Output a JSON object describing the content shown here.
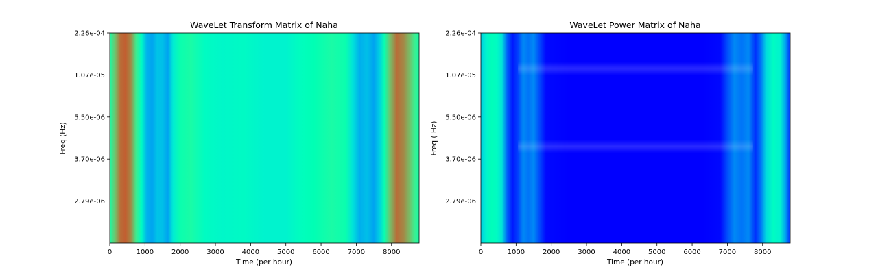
{
  "chart_data": [
    {
      "type": "heatmap",
      "title": "WaveLet Transform Matrix of Naha",
      "xlabel": "Time (per hour)",
      "ylabel": "Freq (Hz)",
      "xlim": [
        0,
        8784
      ],
      "xticks": [
        0,
        1000,
        2000,
        3000,
        4000,
        5000,
        6000,
        7000,
        8000
      ],
      "yticklabels": [
        "2.26e-04",
        "1.07e-05",
        "5.50e-06",
        "3.70e-06",
        "2.79e-06"
      ],
      "colormap": "rainbow",
      "column_profile": [
        {
          "t": 0,
          "v": 0.55
        },
        {
          "t": 150,
          "v": 0.72
        },
        {
          "t": 300,
          "v": 0.86
        },
        {
          "t": 450,
          "v": 0.88
        },
        {
          "t": 600,
          "v": 0.82
        },
        {
          "t": 750,
          "v": 0.62
        },
        {
          "t": 900,
          "v": 0.45
        },
        {
          "t": 1050,
          "v": 0.25
        },
        {
          "t": 1200,
          "v": 0.22
        },
        {
          "t": 1350,
          "v": 0.28
        },
        {
          "t": 1500,
          "v": 0.27
        },
        {
          "t": 1650,
          "v": 0.22
        },
        {
          "t": 1800,
          "v": 0.38
        },
        {
          "t": 2000,
          "v": 0.52
        },
        {
          "t": 2300,
          "v": 0.55
        },
        {
          "t": 2700,
          "v": 0.45
        },
        {
          "t": 3200,
          "v": 0.42
        },
        {
          "t": 3800,
          "v": 0.44
        },
        {
          "t": 4400,
          "v": 0.4
        },
        {
          "t": 5000,
          "v": 0.4
        },
        {
          "t": 5400,
          "v": 0.46
        },
        {
          "t": 5800,
          "v": 0.5
        },
        {
          "t": 6300,
          "v": 0.55
        },
        {
          "t": 6700,
          "v": 0.52
        },
        {
          "t": 6900,
          "v": 0.35
        },
        {
          "t": 7100,
          "v": 0.24
        },
        {
          "t": 7300,
          "v": 0.27
        },
        {
          "t": 7500,
          "v": 0.22
        },
        {
          "t": 7650,
          "v": 0.3
        },
        {
          "t": 7800,
          "v": 0.52
        },
        {
          "t": 7950,
          "v": 0.72
        },
        {
          "t": 8150,
          "v": 0.86
        },
        {
          "t": 8350,
          "v": 0.82
        },
        {
          "t": 8500,
          "v": 0.74
        },
        {
          "t": 8650,
          "v": 0.62
        },
        {
          "t": 8784,
          "v": 0.55
        }
      ]
    },
    {
      "type": "heatmap",
      "title": "WaveLet Power Matrix of Naha",
      "xlabel": "Time (per hour)",
      "ylabel": "Freq ( Hz)",
      "xlim": [
        0,
        8784
      ],
      "xticks": [
        0,
        1000,
        2000,
        3000,
        4000,
        5000,
        6000,
        7000,
        8000
      ],
      "yticklabels": [
        "2.26e-04",
        "1.07e-05",
        "5.50e-06",
        "3.70e-06",
        "2.79e-06"
      ],
      "colormap": "rainbow",
      "column_profile": [
        {
          "t": 0,
          "v": 0.3
        },
        {
          "t": 150,
          "v": 0.4
        },
        {
          "t": 300,
          "v": 0.48
        },
        {
          "t": 450,
          "v": 0.45
        },
        {
          "t": 600,
          "v": 0.35
        },
        {
          "t": 750,
          "v": 0.12
        },
        {
          "t": 900,
          "v": 0.03
        },
        {
          "t": 1050,
          "v": 0.08
        },
        {
          "t": 1200,
          "v": 0.18
        },
        {
          "t": 1350,
          "v": 0.15
        },
        {
          "t": 1500,
          "v": 0.18
        },
        {
          "t": 1650,
          "v": 0.1
        },
        {
          "t": 1850,
          "v": 0.01
        },
        {
          "t": 2500,
          "v": 0.0
        },
        {
          "t": 4000,
          "v": 0.0
        },
        {
          "t": 5500,
          "v": 0.0
        },
        {
          "t": 6300,
          "v": 0.0
        },
        {
          "t": 6800,
          "v": 0.01
        },
        {
          "t": 7000,
          "v": 0.1
        },
        {
          "t": 7200,
          "v": 0.18
        },
        {
          "t": 7400,
          "v": 0.15
        },
        {
          "t": 7600,
          "v": 0.18
        },
        {
          "t": 7800,
          "v": 0.06
        },
        {
          "t": 7950,
          "v": 0.15
        },
        {
          "t": 8100,
          "v": 0.33
        },
        {
          "t": 8300,
          "v": 0.45
        },
        {
          "t": 8500,
          "v": 0.4
        },
        {
          "t": 8650,
          "v": 0.22
        },
        {
          "t": 8784,
          "v": 0.05
        }
      ],
      "row_bands": [
        {
          "freq_label_position": 0.17,
          "boost": 0.16
        },
        {
          "freq_label_position": 0.54,
          "boost": 0.16
        }
      ]
    }
  ]
}
